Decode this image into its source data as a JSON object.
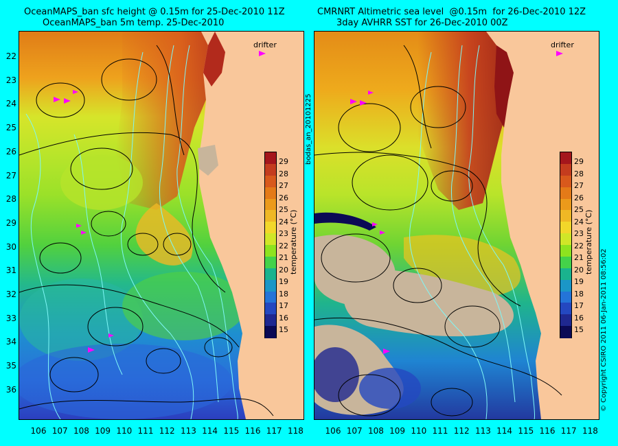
{
  "titles": {
    "left_line1": "OceanMAPS_ban sfc height @ 0.15m for 25-Dec-2010 11Z",
    "left_line2": "OceanMAPS_ban 5m temp. 25-Dec-2010",
    "right_line1": "CMRNRT Altimetric sea level  @0.15m  for 26-Dec-2010 12Z",
    "right_line2": "3day AVHRR SST for 26-Dec-2010 00Z"
  },
  "lat_ticks": [
    "22",
    "23",
    "24",
    "25",
    "26",
    "27",
    "28",
    "29",
    "30",
    "31",
    "32",
    "33",
    "34",
    "35",
    "36"
  ],
  "lon_ticks": [
    "106",
    "107",
    "108",
    "109",
    "110",
    "111",
    "112",
    "113",
    "114",
    "115",
    "116",
    "117",
    "118"
  ],
  "colorbar": {
    "ticks": [
      "29",
      "28",
      "27",
      "26",
      "25",
      "24",
      "23",
      "22",
      "21",
      "20",
      "19",
      "18",
      "17",
      "16",
      "15"
    ],
    "title": "temperature (°C)",
    "colors": [
      "#a4161c",
      "#c43c1e",
      "#d8591c",
      "#e47a18",
      "#eb9a1b",
      "#efb825",
      "#f2d72a",
      "#d0e628",
      "#8ee31f",
      "#44d24a",
      "#1ab38e",
      "#1b96c7",
      "#2474d8",
      "#2448c0",
      "#1f2890",
      "#0b0a55"
    ]
  },
  "drifter_label": "drifter",
  "side_text_left": "bodas_an_20101225",
  "side_text_right": "© Copyright CSIRO 2011    06-Jan-2011 08:56:02",
  "colors": {
    "background": "#00ffff",
    "land": "#f9c79b",
    "drifter": "#ff00ff",
    "contour": "#000000",
    "bathymetry": "#7ff7f7",
    "cloud": "#c8b59b"
  }
}
